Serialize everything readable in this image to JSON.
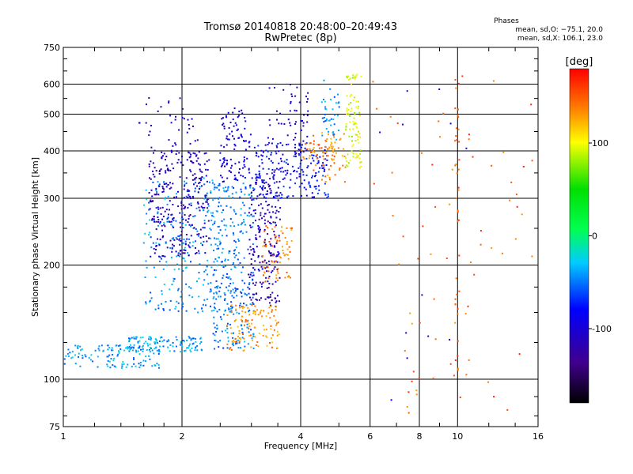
{
  "header": {
    "title_line1": "Tromsø 20140818 20:48:00–20:49:43",
    "title_line2": "RwPretec (8p)"
  },
  "stats": {
    "heading": "Phases",
    "o_mode": "mean, sd,O: −75.1, 20.0",
    "x_mode": "mean, sd,X: 106.1, 23.0"
  },
  "chart_data": {
    "type": "scatter",
    "x_scale": "log",
    "y_scale": "log",
    "xlabel": "Frequency [MHz]",
    "ylabel": "Stationary phase Virtual Height [km]",
    "xlim": [
      1,
      16
    ],
    "ylim": [
      75,
      750
    ],
    "x_ticks": [
      1,
      2,
      4,
      6,
      8,
      10,
      16
    ],
    "y_ticks": [
      75,
      100,
      200,
      300,
      400,
      500,
      600,
      750
    ],
    "grid": true,
    "colorbar": {
      "label": "[deg]",
      "range": [
        -180,
        180
      ],
      "ticks": [
        100,
        0,
        -100
      ]
    },
    "clusters": [
      {
        "f": [
          1.0,
          1.75
        ],
        "h": [
          107,
          123
        ],
        "phase": -40,
        "n": 120
      },
      {
        "f": [
          1.45,
          2.25
        ],
        "h": [
          118,
          130
        ],
        "phase": -40,
        "n": 120
      },
      {
        "f": [
          1.6,
          2.5
        ],
        "h": [
          150,
          340
        ],
        "phase": -45,
        "n": 260
      },
      {
        "f": [
          1.65,
          2.35
        ],
        "h": [
          210,
          400
        ],
        "phase": -115,
        "n": 280
      },
      {
        "f": [
          1.55,
          2.2
        ],
        "h": [
          380,
          560
        ],
        "phase": -110,
        "n": 40
      },
      {
        "f": [
          2.4,
          3.05
        ],
        "h": [
          118,
          330
        ],
        "phase": -50,
        "n": 300
      },
      {
        "f": [
          2.5,
          3.0
        ],
        "h": [
          330,
          520
        ],
        "phase": -95,
        "n": 100
      },
      {
        "f": [
          2.95,
          3.55
        ],
        "h": [
          155,
          360
        ],
        "phase": -115,
        "n": 220
      },
      {
        "f": [
          2.6,
          3.55
        ],
        "h": [
          118,
          158
        ],
        "phase": 135,
        "n": 110
      },
      {
        "f": [
          3.2,
          3.8
        ],
        "h": [
          180,
          255
        ],
        "phase": 140,
        "n": 70
      },
      {
        "f": [
          3.05,
          4.7
        ],
        "h": [
          300,
          420
        ],
        "phase": -80,
        "n": 200
      },
      {
        "f": [
          3.3,
          4.2
        ],
        "h": [
          390,
          600
        ],
        "phase": -110,
        "n": 60
      },
      {
        "f": [
          4.0,
          4.9
        ],
        "h": [
          380,
          420
        ],
        "phase": 140,
        "n": 40
      },
      {
        "f": [
          4.3,
          5.2
        ],
        "h": [
          330,
          450
        ],
        "phase": 135,
        "n": 50
      },
      {
        "f": [
          5.2,
          5.7
        ],
        "h": [
          360,
          640
        ],
        "phase": 95,
        "n": 90
      },
      {
        "f": [
          4.5,
          5.1
        ],
        "h": [
          420,
          620
        ],
        "phase": -45,
        "n": 40
      },
      {
        "f": [
          5.9,
          16
        ],
        "h": [
          80,
          640
        ],
        "phase": 150,
        "n": 70
      },
      {
        "f": [
          9.85,
          10.1
        ],
        "h": [
          100,
          620
        ],
        "phase": 150,
        "n": 40
      },
      {
        "f": [
          6.0,
          12
        ],
        "h": [
          80,
          600
        ],
        "phase": -100,
        "n": 12
      }
    ]
  }
}
